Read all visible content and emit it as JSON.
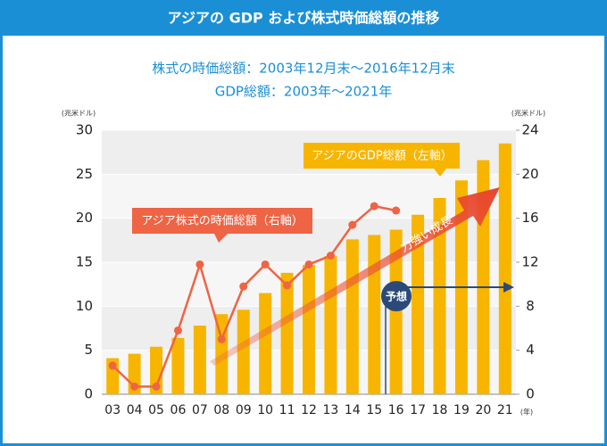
{
  "chart_data": {
    "type": "bar_line",
    "title": "アジアの GDP および株式時価総額の推移",
    "subtitle": [
      "株式の時価総額：2003年12月末～2016年12月末",
      "GDP総額：2003年～2021年"
    ],
    "ylabel": "(兆米ドル)",
    "y2label": "(兆米ドル)",
    "xlabel": "(年)",
    "categories": [
      "03",
      "04",
      "05",
      "06",
      "07",
      "08",
      "09",
      "10",
      "11",
      "12",
      "13",
      "14",
      "15",
      "16",
      "17",
      "18",
      "19",
      "20",
      "21"
    ],
    "series": [
      {
        "name": "アジアのGDP総額（左軸）",
        "type": "bar",
        "color": "#f7b500",
        "axis": "y",
        "values": [
          4.1,
          4.6,
          5.4,
          6.4,
          7.8,
          9.1,
          9.6,
          11.5,
          13.8,
          14.7,
          15.7,
          17.6,
          18.1,
          18.7,
          20.4,
          22.3,
          24.3,
          26.6,
          28.5
        ]
      },
      {
        "name": "アジア株式の時価総額（右軸）",
        "type": "line",
        "color": "#ee6444",
        "axis": "y2",
        "values": [
          2.6,
          0.7,
          0.7,
          5.8,
          11.8,
          5.0,
          9.8,
          11.8,
          9.9,
          11.8,
          12.6,
          15.4,
          17.1,
          16.7,
          null,
          null,
          null,
          null,
          null
        ]
      }
    ],
    "annotations": [
      "力強い成長",
      "予想"
    ],
    "ylim": [
      0,
      30
    ],
    "yticks": [
      0,
      5,
      10,
      15,
      20,
      25,
      30
    ],
    "y2lim": [
      0,
      24
    ],
    "y2ticks": [
      0,
      4,
      8,
      12,
      16,
      20,
      24
    ]
  }
}
